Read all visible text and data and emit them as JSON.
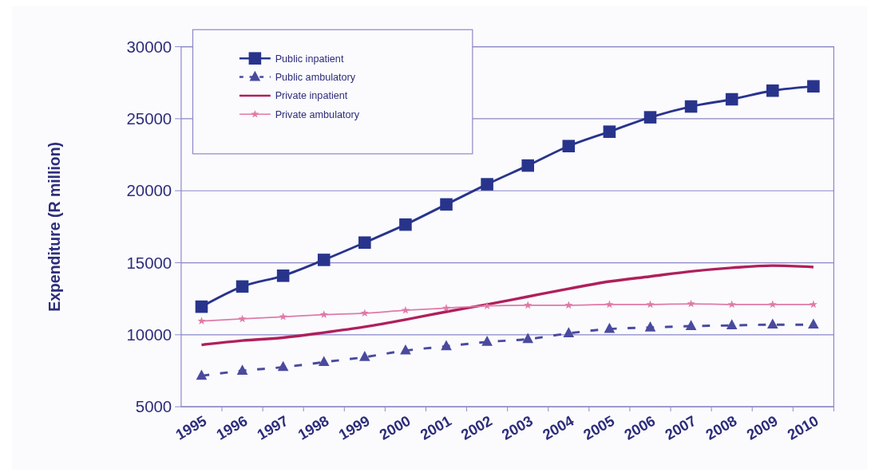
{
  "chart_data": {
    "type": "line",
    "ylabel": "Expenditure (R million)",
    "categories": [
      "1995",
      "1996",
      "1997",
      "1998",
      "1999",
      "2000",
      "2001",
      "2002",
      "2003",
      "2004",
      "2005",
      "2006",
      "2007",
      "2008",
      "2009",
      "2010"
    ],
    "series": [
      {
        "name": "Public inpatient",
        "color": "#28348c",
        "marker": "square",
        "line_style": "solid",
        "values": [
          11950,
          13350,
          14100,
          15200,
          16400,
          17650,
          19050,
          20450,
          21750,
          23100,
          24100,
          25100,
          25850,
          26350,
          26950,
          27250
        ]
      },
      {
        "name": "Public ambulatory",
        "color": "#4a4a9e",
        "marker": "triangle",
        "line_style": "dashed",
        "values": [
          7150,
          7500,
          7750,
          8100,
          8450,
          8900,
          9200,
          9500,
          9700,
          10100,
          10400,
          10500,
          10600,
          10650,
          10700,
          10700
        ]
      },
      {
        "name": "Private inpatient",
        "color": "#b01f5c",
        "marker": "none",
        "line_style": "solid",
        "values": [
          9300,
          9600,
          9800,
          10150,
          10550,
          11050,
          11600,
          12100,
          12650,
          13200,
          13700,
          14050,
          14400,
          14650,
          14800,
          14700
        ]
      },
      {
        "name": "Private ambulatory",
        "color": "#e07aa8",
        "marker": "star",
        "line_style": "solid",
        "values": [
          10950,
          11100,
          11250,
          11400,
          11500,
          11700,
          11850,
          12000,
          12050,
          12050,
          12100,
          12100,
          12150,
          12100,
          12100,
          12100
        ]
      }
    ],
    "ylim": [
      5000,
      30000
    ],
    "yticks": [
      5000,
      10000,
      15000,
      20000,
      25000,
      30000
    ],
    "grid": "y",
    "legend": "top left"
  }
}
